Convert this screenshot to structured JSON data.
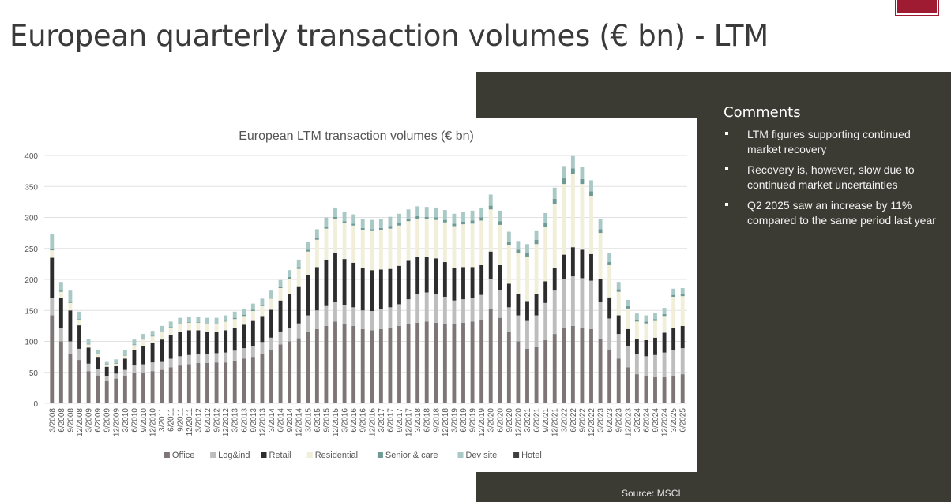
{
  "page": {
    "title": "European quarterly transaction volumes (€ bn) - LTM",
    "source": "Source: MSCI"
  },
  "comments": {
    "heading": "Comments",
    "items": [
      "LTM figures supporting continued market recovery",
      "Recovery is, however, slow due to continued market uncertainties",
      "Q2 2025 saw an increase by 11% compared to the same period last year"
    ]
  },
  "colors": {
    "brand": "#9e1b32",
    "panel": "#3b3a33"
  },
  "chart_data": {
    "type": "bar",
    "stacked": true,
    "title": "European LTM transaction volumes (€ bn)",
    "xlabel": "",
    "ylabel": "",
    "ylim": [
      0,
      400
    ],
    "yticks": [
      0,
      50,
      100,
      150,
      200,
      250,
      300,
      350,
      400
    ],
    "grid": true,
    "legend_position": "bottom",
    "categories": [
      "3/2008",
      "6/2008",
      "9/2008",
      "12/2008",
      "3/2009",
      "6/2009",
      "9/2009",
      "12/2009",
      "3/2010",
      "6/2010",
      "9/2010",
      "12/2010",
      "3/2011",
      "6/2011",
      "9/2011",
      "12/2011",
      "3/2012",
      "6/2012",
      "9/2012",
      "12/2012",
      "3/2013",
      "6/2013",
      "9/2013",
      "12/2013",
      "3/2014",
      "6/2014",
      "9/2014",
      "12/2014",
      "3/2015",
      "6/2015",
      "9/2015",
      "12/2015",
      "3/2016",
      "6/2016",
      "9/2016",
      "12/2016",
      "3/2017",
      "6/2017",
      "9/2017",
      "12/2017",
      "3/2018",
      "6/2018",
      "9/2018",
      "12/2018",
      "3/2019",
      "6/2019",
      "9/2019",
      "12/2019",
      "3/2020",
      "6/2020",
      "9/2020",
      "12/2020",
      "3/2021",
      "6/2021",
      "9/2021",
      "12/2021",
      "3/2022",
      "6/2022",
      "9/2022",
      "12/2022",
      "3/2023",
      "6/2023",
      "9/2023",
      "12/2023",
      "3/2024",
      "6/2024",
      "9/2024",
      "12/2024",
      "3/2025",
      "6/2025"
    ],
    "series": [
      {
        "name": "Office",
        "color": "#7e7676",
        "values": [
          142,
          100,
          80,
          70,
          52,
          45,
          36,
          40,
          44,
          49,
          50,
          52,
          54,
          58,
          61,
          63,
          65,
          65,
          66,
          66,
          69,
          72,
          75,
          80,
          86,
          95,
          100,
          105,
          115,
          120,
          125,
          132,
          128,
          125,
          120,
          118,
          120,
          122,
          125,
          128,
          130,
          132,
          130,
          128,
          128,
          130,
          132,
          135,
          152,
          138,
          115,
          100,
          88,
          92,
          102,
          112,
          122,
          125,
          122,
          120,
          104,
          87,
          72,
          58,
          47,
          44,
          42,
          42,
          44,
          47
        ]
      },
      {
        "name": "Log&ind",
        "color": "#bdbdbd",
        "values": [
          28,
          22,
          20,
          18,
          12,
          10,
          8,
          8,
          10,
          12,
          13,
          14,
          14,
          14,
          15,
          15,
          15,
          15,
          15,
          16,
          16,
          17,
          18,
          19,
          20,
          21,
          22,
          24,
          27,
          30,
          32,
          32,
          30,
          30,
          30,
          31,
          32,
          33,
          35,
          40,
          46,
          47,
          46,
          44,
          38,
          38,
          38,
          40,
          48,
          45,
          40,
          42,
          45,
          50,
          60,
          70,
          78,
          80,
          80,
          78,
          60,
          50,
          40,
          35,
          32,
          32,
          36,
          40,
          42,
          42
        ]
      },
      {
        "name": "Retail",
        "color": "#2d2d2d",
        "values": [
          65,
          48,
          50,
          38,
          26,
          20,
          15,
          12,
          18,
          25,
          30,
          32,
          35,
          38,
          40,
          40,
          38,
          36,
          35,
          36,
          37,
          38,
          40,
          42,
          45,
          50,
          55,
          60,
          65,
          70,
          75,
          79,
          75,
          72,
          68,
          66,
          64,
          62,
          62,
          62,
          60,
          58,
          58,
          56,
          52,
          52,
          50,
          48,
          45,
          40,
          38,
          35,
          32,
          35,
          35,
          36,
          40,
          47,
          46,
          43,
          37,
          34,
          30,
          27,
          25,
          26,
          28,
          32,
          36,
          36
        ]
      },
      {
        "name": "Residential",
        "color": "#f1efd9",
        "values": [
          12,
          10,
          12,
          8,
          5,
          4,
          3,
          4,
          5,
          8,
          10,
          10,
          12,
          12,
          12,
          12,
          12,
          12,
          12,
          14,
          14,
          14,
          16,
          16,
          18,
          20,
          24,
          28,
          38,
          44,
          50,
          55,
          58,
          60,
          62,
          63,
          64,
          65,
          65,
          64,
          62,
          60,
          62,
          64,
          68,
          69,
          70,
          72,
          68,
          65,
          62,
          65,
          72,
          80,
          88,
          104,
          114,
          118,
          106,
          94,
          74,
          52,
          38,
          33,
          28,
          27,
          27,
          27,
          50,
          48
        ]
      },
      {
        "name": "Senior & care",
        "color": "#6d9a95",
        "values": [
          2,
          2,
          2,
          2,
          1,
          1,
          1,
          1,
          1,
          1,
          1,
          1,
          1,
          1,
          1,
          1,
          1,
          1,
          1,
          1,
          2,
          2,
          2,
          2,
          2,
          2,
          3,
          3,
          3,
          3,
          3,
          3,
          3,
          3,
          3,
          3,
          3,
          4,
          4,
          4,
          4,
          4,
          4,
          4,
          4,
          4,
          5,
          5,
          6,
          6,
          6,
          6,
          6,
          7,
          7,
          8,
          9,
          9,
          8,
          7,
          6,
          5,
          4,
          4,
          3,
          3,
          3,
          3,
          3,
          3
        ]
      },
      {
        "name": "Dev site",
        "color": "#a9c9c6",
        "values": [
          24,
          14,
          18,
          12,
          8,
          6,
          5,
          6,
          8,
          8,
          8,
          8,
          9,
          9,
          9,
          9,
          9,
          9,
          9,
          9,
          10,
          10,
          10,
          10,
          11,
          11,
          11,
          12,
          13,
          14,
          15,
          15,
          15,
          15,
          15,
          15,
          15,
          15,
          15,
          15,
          16,
          16,
          16,
          16,
          16,
          16,
          16,
          16,
          18,
          17,
          16,
          14,
          14,
          14,
          15,
          18,
          20,
          20,
          20,
          18,
          16,
          14,
          12,
          10,
          10,
          10,
          10,
          10,
          10,
          10
        ]
      },
      {
        "name": "Hotel",
        "color": "#3f3f3f",
        "values": [
          0,
          0,
          0,
          0,
          0,
          0,
          0,
          0,
          0,
          0,
          0,
          0,
          0,
          0,
          0,
          0,
          0,
          0,
          0,
          0,
          0,
          0,
          0,
          0,
          0,
          0,
          0,
          0,
          0,
          0,
          0,
          0,
          0,
          0,
          0,
          0,
          0,
          0,
          0,
          0,
          0,
          0,
          0,
          0,
          0,
          0,
          0,
          0,
          0,
          0,
          0,
          0,
          0,
          0,
          0,
          0,
          0,
          0,
          0,
          0,
          0,
          0,
          0,
          0,
          0,
          0,
          0,
          0,
          0,
          0
        ]
      }
    ]
  }
}
